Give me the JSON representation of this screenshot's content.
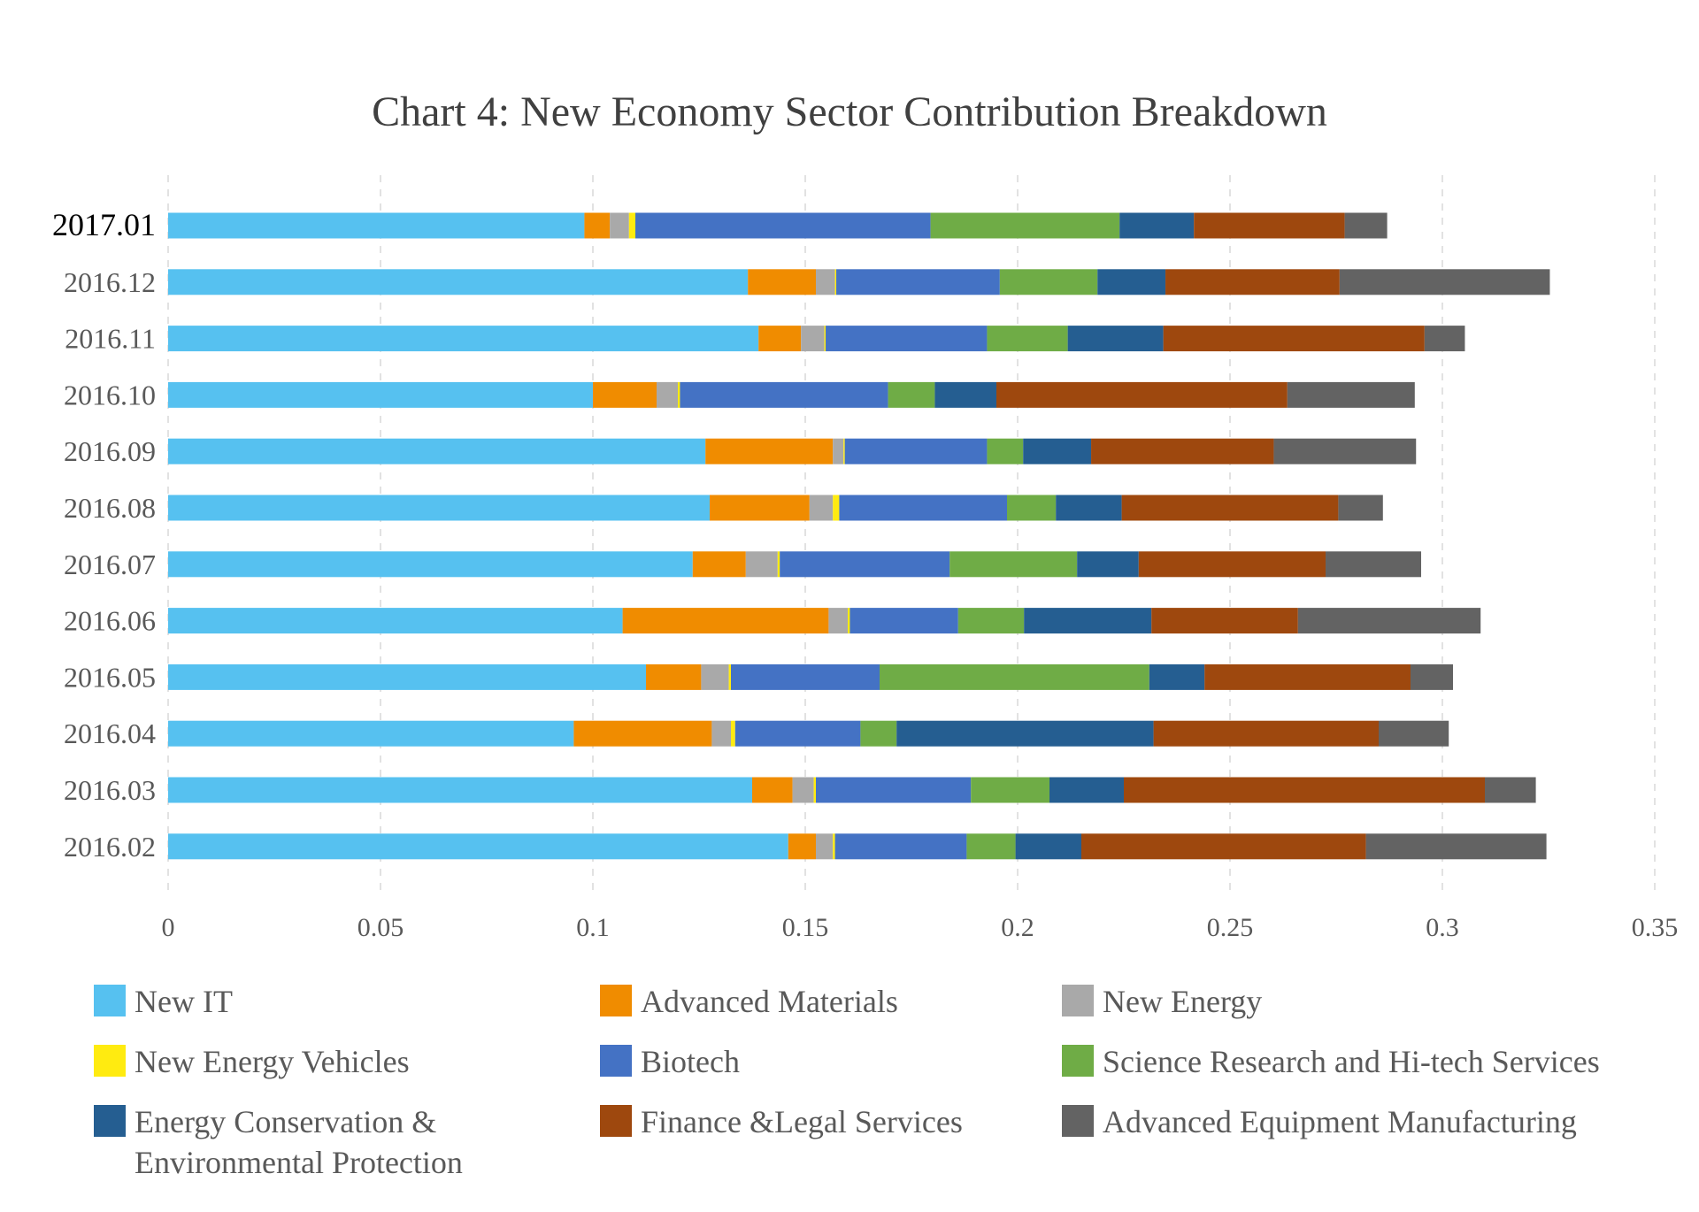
{
  "chart_data": {
    "type": "bar",
    "orientation": "horizontal",
    "stacked": true,
    "title": "Chart 4: New Economy Sector Contribution Breakdown",
    "xlabel": "",
    "ylabel": "",
    "xlim": [
      0,
      0.35
    ],
    "xticks": [
      0,
      0.05,
      0.1,
      0.15,
      0.2,
      0.25,
      0.3,
      0.35
    ],
    "xtick_labels": [
      "0",
      "0.05",
      "0.1",
      "0.15",
      "0.2",
      "0.25",
      "0.3",
      "0.35"
    ],
    "grid": "vertical dashed",
    "legend_position": "bottom",
    "categories": [
      "2017.01",
      "2016.12",
      "2016.11",
      "2016.10",
      "2016.09",
      "2016.08",
      "2016.07",
      "2016.06",
      "2016.05",
      "2016.04",
      "2016.03",
      "2016.02"
    ],
    "series": [
      {
        "name": "New IT",
        "color": "#56C1F0",
        "values": [
          0.098,
          0.1365,
          0.139,
          0.1,
          0.1265,
          0.1275,
          0.1235,
          0.107,
          0.1125,
          0.0955,
          0.1375,
          0.146
        ]
      },
      {
        "name": "Advanced Materials",
        "color": "#F08C00",
        "values": [
          0.006,
          0.016,
          0.01,
          0.015,
          0.03,
          0.0235,
          0.0125,
          0.0485,
          0.013,
          0.0325,
          0.0095,
          0.0065
        ]
      },
      {
        "name": "New Energy",
        "color": "#A9A9A9",
        "values": [
          0.0045,
          0.0045,
          0.0055,
          0.005,
          0.0025,
          0.0055,
          0.0075,
          0.0045,
          0.0065,
          0.0045,
          0.005,
          0.004
        ]
      },
      {
        "name": "New Energy Vehicles",
        "color": "#FFEB10",
        "values": [
          0.0015,
          0.0003,
          0.0003,
          0.0005,
          0.0003,
          0.0015,
          0.0005,
          0.0005,
          0.0005,
          0.001,
          0.0005,
          0.0005
        ]
      },
      {
        "name": "Biotech",
        "color": "#4472C4",
        "values": [
          0.0695,
          0.0385,
          0.038,
          0.049,
          0.0335,
          0.0395,
          0.04,
          0.0255,
          0.035,
          0.0295,
          0.0365,
          0.031
        ]
      },
      {
        "name": "Science Research and Hi-tech Services",
        "color": "#6FAC46",
        "values": [
          0.0445,
          0.023,
          0.019,
          0.011,
          0.0085,
          0.0115,
          0.03,
          0.0155,
          0.0635,
          0.0085,
          0.0185,
          0.0115
        ]
      },
      {
        "name": "Energy Conservation & Environmental Protection",
        "color": "#255E91",
        "values": [
          0.0175,
          0.016,
          0.0225,
          0.0145,
          0.016,
          0.0155,
          0.0145,
          0.03,
          0.013,
          0.0605,
          0.0175,
          0.0155
        ]
      },
      {
        "name": "Finance &Legal Services",
        "color": "#9E480E",
        "values": [
          0.0355,
          0.041,
          0.0615,
          0.0685,
          0.043,
          0.051,
          0.044,
          0.0345,
          0.0485,
          0.053,
          0.085,
          0.067
        ]
      },
      {
        "name": "Advanced Equipment Manufacturing",
        "color": "#636363",
        "values": [
          0.01,
          0.0495,
          0.0095,
          0.03,
          0.0335,
          0.0105,
          0.0225,
          0.043,
          0.01,
          0.0165,
          0.012,
          0.0425
        ]
      }
    ],
    "legend": [
      {
        "label": "New IT",
        "color": "#56C1F0"
      },
      {
        "label": "Advanced Materials",
        "color": "#F08C00"
      },
      {
        "label": "New Energy",
        "color": "#A9A9A9"
      },
      {
        "label": "New Energy Vehicles",
        "color": "#FFEB10"
      },
      {
        "label": "Biotech",
        "color": "#4472C4"
      },
      {
        "label": "Science Research and Hi-tech Services",
        "color": "#6FAC46"
      },
      {
        "label": "Energy Conservation &",
        "label_line2": "Environmental Protection",
        "color": "#255E91"
      },
      {
        "label": "Finance &Legal Services",
        "color": "#9E480E"
      },
      {
        "label": "Advanced Equipment Manufacturing",
        "color": "#636363"
      }
    ]
  }
}
